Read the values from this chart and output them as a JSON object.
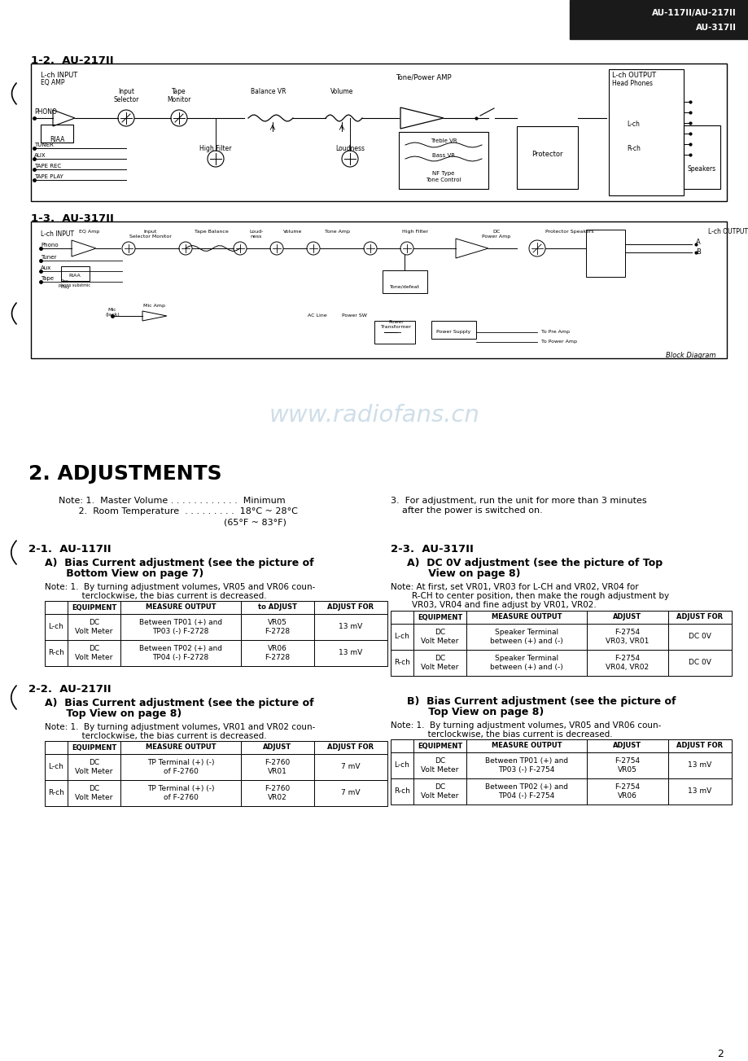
{
  "bg_color": "#ffffff",
  "header_bg": "#1a1a1a",
  "header_text": "AU-117II/AU-217II\nAU-317II",
  "section_12_title": "1-2.  AU-217II",
  "section_13_title": "1-3.  AU-317II",
  "watermark": "www.radiofans.cn",
  "section2_title": "2. ADJUSTMENTS",
  "note1": "Note: 1.  Master Volume . . . . . . . . . . . .  Minimum",
  "note2": "       2.  Room Temperature  . . . . . . . . .  18°C ~ 28°C",
  "note3": "                                                          (65°F ~ 83°F)",
  "note4": "3.  For adjustment, run the unit for more than 3 minutes\n    after the power is switched on.",
  "s21_title": "2-1.  AU-117II",
  "s21_suba": "A)  Bias Current adjustment (see the picture of",
  "s21_subb": "      Bottom View on page 7)",
  "s21_note1": "Note: 1.  By turning adjustment volumes, VR05 and VR06 coun-",
  "s21_note2": "              terclockwise, the bias current is decreased.",
  "s22_title": "2-2.  AU-217II",
  "s22_suba": "A)  Bias Current adjustment (see the picture of",
  "s22_subb": "      Top View on page 8)",
  "s22_note1": "Note: 1.  By turning adjustment volumes, VR01 and VR02 coun-",
  "s22_note2": "              terclockwise, the bias current is decreased.",
  "s23_title": "2-3.  AU-317II",
  "s23a_suba": "A)  DC 0V adjustment (see the picture of Top",
  "s23a_subb": "      View on page 8)",
  "s23a_note1": "Note: At first, set VR01, VR03 for L-CH and VR02, VR04 for",
  "s23a_note2": "        R-CH to center position, then make the rough adjustment by",
  "s23a_note3": "        VR03, VR04 and fine adjust by VR01, VR02.",
  "s23b_suba": "B)  Bias Current adjustment (see the picture of",
  "s23b_subb": "      Top View on page 8)",
  "s23b_note1": "Note: 1.  By turning adjustment volumes, VR05 and VR06 coun-",
  "s23b_note2": "              terclockwise, the bias current is decreased.",
  "page_num": "2",
  "t21_headers": [
    "",
    "EQUIPMENT",
    "MEASURE OUTPUT",
    "to ADJUST",
    "ADJUST FOR"
  ],
  "t21_rows": [
    [
      "L-ch",
      "DC\nVolt Meter",
      "Between TP01 (+) and\nTP03 (-) F-2728",
      "VR05\nF-2728",
      "13 mV"
    ],
    [
      "R-ch",
      "DC\nVolt Meter",
      "Between TP02 (+) and\nTP04 (-) F-2728",
      "VR06\nF-2728",
      "13 mV"
    ]
  ],
  "t22_headers": [
    "",
    "EQUIPMENT",
    "MEASURE OUTPUT",
    "ADJUST",
    "ADJUST FOR"
  ],
  "t22_rows": [
    [
      "L-ch",
      "DC\nVolt Meter",
      "TP Terminal (+) (-)\nof F-2760",
      "F-2760\nVR01",
      "7 mV"
    ],
    [
      "R-ch",
      "DC\nVolt Meter",
      "TP Terminal (+) (-)\nof F-2760",
      "F-2760\nVR02",
      "7 mV"
    ]
  ],
  "t23a_headers": [
    "",
    "EQUIPMENT",
    "MEASURE OUTPUT",
    "ADJUST",
    "ADJUST FOR"
  ],
  "t23a_rows": [
    [
      "L-ch",
      "DC\nVolt Meter",
      "Speaker Terminal\nbetween (+) and (-)",
      "F-2754\nVR03, VR01",
      "DC 0V"
    ],
    [
      "R-ch",
      "DC\nVolt Meter",
      "Speaker Terminal\nbetween (+) and (-)",
      "F-2754\nVR04, VR02",
      "DC 0V"
    ]
  ],
  "t23b_headers": [
    "",
    "EQUIPMENT",
    "MEASURE OUTPUT",
    "ADJUST",
    "ADJUST FOR"
  ],
  "t23b_rows": [
    [
      "L-ch",
      "DC\nVolt Meter",
      "Between TP01 (+) and\nTP03 (-) F-2754",
      "F-2754\nVR05",
      "13 mV"
    ],
    [
      "R-ch",
      "DC\nVolt Meter",
      "Between TP02 (+) and\nTP04 (-) F-2754",
      "F-2754\nVR06",
      "13 mV"
    ]
  ]
}
